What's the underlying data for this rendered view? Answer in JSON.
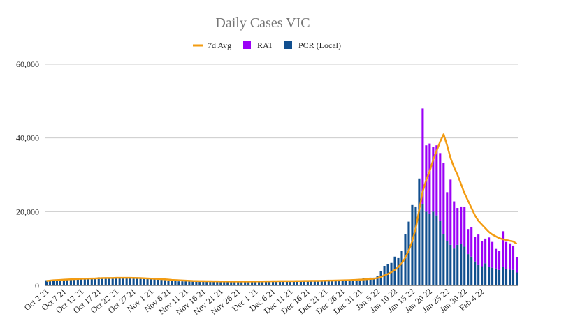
{
  "chart_data": {
    "type": "bar",
    "title": "Daily Cases VIC",
    "legend": [
      "7d Avg",
      "RAT",
      "PCR (Local)"
    ],
    "colors": {
      "avg": "#f39c12",
      "rat": "#9b00f7",
      "pcr": "#114f8f"
    },
    "ylim": [
      0,
      60000
    ],
    "yticks": [
      0,
      20000,
      40000,
      60000
    ],
    "ytick_labels": [
      "0",
      "20,000",
      "40,000",
      "60,000"
    ],
    "xtick_labels": [
      "Oct 2 21",
      "Oct 7 21",
      "Oct 12 21",
      "Oct 17 21",
      "Oct 22 21",
      "Oct 27 21",
      "Nov 1 21",
      "Nov 6 21",
      "Nov 11 21",
      "Nov 16 21",
      "Nov 21 21",
      "Nov 26 21",
      "Dec 1 21",
      "Dec 6 21",
      "Dec 11 21",
      "Dec 16 21",
      "Dec 21 21",
      "Dec 26 21",
      "Dec 31 21",
      "Jan 5 22",
      "Jan 10 22",
      "Jan 15 22",
      "Jan 20 22",
      "Jan 25 22",
      "Jan 30 22",
      "Feb 4 22"
    ],
    "pcr": [
      1400,
      1200,
      1300,
      1400,
      1500,
      1600,
      1600,
      1700,
      1800,
      1800,
      1900,
      1900,
      1900,
      2000,
      2000,
      2200,
      2000,
      1900,
      2000,
      2100,
      2100,
      2100,
      2000,
      2000,
      2000,
      2000,
      1900,
      1900,
      1800,
      1800,
      1700,
      1700,
      1600,
      1500,
      1400,
      1300,
      1200,
      1200,
      1100,
      1100,
      1100,
      1100,
      1100,
      1100,
      1100,
      1100,
      1100,
      1100,
      1100,
      1100,
      1000,
      1000,
      1000,
      1000,
      1000,
      1000,
      1000,
      1000,
      1000,
      1000,
      1100,
      1100,
      1100,
      1100,
      1100,
      1100,
      1100,
      1100,
      1100,
      1100,
      1100,
      1200,
      1200,
      1200,
      1200,
      1200,
      1200,
      1200,
      1200,
      1300,
      1300,
      1300,
      1300,
      1300,
      1400,
      1400,
      1400,
      1500,
      1600,
      1700,
      1800,
      2000,
      2000,
      2100,
      2100,
      2600,
      3900,
      5300,
      5800,
      6100,
      7800,
      7400,
      9400,
      13900,
      17300,
      21800,
      21400,
      29000,
      22000,
      20000,
      19500,
      20000,
      19000,
      17500,
      14000,
      12000,
      11000,
      10000,
      11000,
      11200,
      10500,
      8500,
      7800,
      6500,
      5500,
      5200,
      6000,
      5000,
      4800,
      4600,
      4200,
      5000,
      4500,
      4300,
      4200,
      3500
    ],
    "rat": [
      0,
      0,
      0,
      0,
      0,
      0,
      0,
      0,
      0,
      0,
      0,
      0,
      0,
      0,
      0,
      0,
      0,
      0,
      0,
      0,
      0,
      0,
      0,
      0,
      0,
      0,
      0,
      0,
      0,
      0,
      0,
      0,
      0,
      0,
      0,
      0,
      0,
      0,
      0,
      0,
      0,
      0,
      0,
      0,
      0,
      0,
      0,
      0,
      0,
      0,
      0,
      0,
      0,
      0,
      0,
      0,
      0,
      0,
      0,
      0,
      0,
      0,
      0,
      0,
      0,
      0,
      0,
      0,
      0,
      0,
      0,
      0,
      0,
      0,
      0,
      0,
      0,
      0,
      0,
      0,
      0,
      0,
      0,
      0,
      0,
      0,
      0,
      0,
      0,
      0,
      0,
      0,
      0,
      0,
      0,
      0,
      0,
      0,
      0,
      0,
      0,
      0,
      0,
      0,
      0,
      0,
      0,
      0,
      26000,
      18000,
      19000,
      17500,
      19000,
      18400,
      19300,
      13300,
      17700,
      12800,
      10000,
      10200,
      10700,
      6800,
      8000,
      6600,
      8300,
      6900,
      6700,
      8000,
      7000,
      5300,
      5200,
      9700,
      7300,
      7100,
      6600,
      4200
    ],
    "avg": [
      1200,
      1300,
      1400,
      1450,
      1500,
      1550,
      1600,
      1650,
      1700,
      1750,
      1800,
      1820,
      1850,
      1880,
      1900,
      1950,
      1980,
      2000,
      2000,
      2020,
      2050,
      2050,
      2050,
      2050,
      2050,
      2030,
      2000,
      1980,
      1950,
      1900,
      1850,
      1800,
      1750,
      1700,
      1650,
      1580,
      1500,
      1450,
      1400,
      1350,
      1300,
      1250,
      1200,
      1180,
      1160,
      1150,
      1140,
      1130,
      1120,
      1110,
      1100,
      1090,
      1080,
      1070,
      1060,
      1060,
      1060,
      1060,
      1060,
      1060,
      1080,
      1090,
      1100,
      1110,
      1120,
      1130,
      1140,
      1150,
      1150,
      1160,
      1160,
      1170,
      1180,
      1190,
      1200,
      1210,
      1220,
      1230,
      1240,
      1250,
      1270,
      1290,
      1300,
      1320,
      1340,
      1360,
      1390,
      1420,
      1460,
      1510,
      1570,
      1620,
      1680,
      1750,
      1830,
      2000,
      2300,
      2700,
      3100,
      3600,
      4200,
      5000,
      6000,
      7500,
      9500,
      12000,
      15500,
      20500,
      25500,
      28500,
      31000,
      34000,
      36500,
      39000,
      41000,
      38000,
      34500,
      32000,
      30000,
      27500,
      25000,
      23000,
      21000,
      19000,
      17500,
      16500,
      15500,
      14500,
      13800,
      13300,
      12800,
      12500,
      12300,
      12100,
      11900,
      11300
    ]
  }
}
